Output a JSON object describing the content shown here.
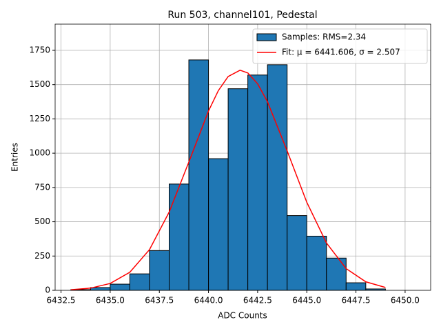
{
  "chart_data": {
    "type": "histogram",
    "title": "Run 503, channel101, Pedestal",
    "xlabel": "ADC Counts",
    "ylabel": "Entries",
    "xlim": [
      6432.2,
      6451.3
    ],
    "ylim": [
      0,
      1941
    ],
    "xticks": [
      6432.5,
      {
        "value": 6435,
        "label": "6435.0"
      },
      6437.5,
      {
        "value": 6440,
        "label": "6440.0"
      },
      6442.5,
      {
        "value": 6445,
        "label": "6445.0"
      },
      6447.5,
      {
        "value": 6450,
        "label": "6450.0"
      }
    ],
    "yticks": [
      0,
      250,
      500,
      750,
      1000,
      1250,
      1500,
      1750
    ],
    "grid": true,
    "legend": "upper right",
    "series": [
      {
        "name": "Samples: RMS=2.34",
        "type": "histogram",
        "color": "#1f77b4",
        "edgecolor": "#000000",
        "bins": [
          6433,
          6434,
          6435,
          6436,
          6437,
          6438,
          6439,
          6440,
          6441,
          6442,
          6443,
          6444,
          6445,
          6446,
          6447,
          6448,
          6449
        ],
        "values": [
          5,
          20,
          45,
          120,
          290,
          775,
          1680,
          960,
          1470,
          1570,
          1645,
          545,
          395,
          235,
          55,
          10
        ]
      },
      {
        "name": "Fit: μ = 6441.606, σ = 2.507",
        "type": "line",
        "color": "#ff0000",
        "x": [
          6433,
          6434,
          6435,
          6436,
          6437,
          6438,
          6439,
          6440,
          6440.5,
          6441,
          6441.606,
          6442,
          6442.5,
          6443,
          6444,
          6445,
          6446,
          6447,
          6448,
          6449
        ],
        "values": [
          4.4,
          16.1,
          49.9,
          131.8,
          296.8,
          570.6,
          935.2,
          1307,
          1456,
          1559,
          1605,
          1585,
          1506,
          1375,
          1017,
          641.8,
          345.4,
          158.5,
          62.2,
          20.8
        ]
      }
    ]
  }
}
